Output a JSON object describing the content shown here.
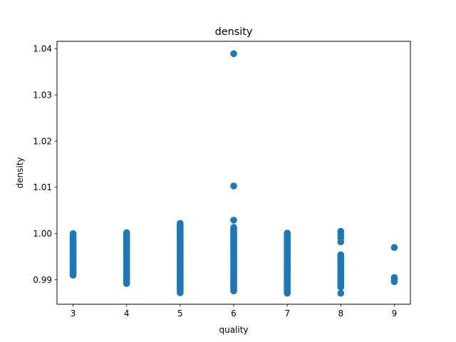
{
  "chart_data": {
    "type": "scatter",
    "title": "density",
    "xlabel": "quality",
    "ylabel": "density",
    "grid": false,
    "legend": "none",
    "color": "#1f77b4",
    "xlim": [
      2.7,
      9.3
    ],
    "ylim": [
      0.98472,
      1.04158
    ],
    "xticks": [
      3,
      4,
      5,
      6,
      7,
      8,
      9
    ],
    "yticks": [
      0.99,
      1.0,
      1.01,
      1.02,
      1.03,
      1.04
    ],
    "ytick_labels": [
      "0.99",
      "1.00",
      "1.01",
      "1.02",
      "1.03",
      "1.04"
    ],
    "ranges": [
      {
        "x": 3,
        "min": 0.991,
        "max": 1.0
      },
      {
        "x": 4,
        "min": 0.9892,
        "max": 1.0004
      },
      {
        "x": 5,
        "min": 0.9872,
        "max": 1.0023
      },
      {
        "x": 6,
        "min": 0.9876,
        "max": 1.0014
      },
      {
        "x": 7,
        "min": 0.9871,
        "max": 1.0003
      },
      {
        "x": 8,
        "min": 0.9884,
        "max": 0.9956
      }
    ],
    "extra_points": [
      {
        "x": 6,
        "y": 1.0389
      },
      {
        "x": 6,
        "y": 1.0103
      },
      {
        "x": 6,
        "y": 1.0029
      },
      {
        "x": 8,
        "y": 1.0005
      },
      {
        "x": 8,
        "y": 0.9998
      },
      {
        "x": 8,
        "y": 0.9991
      },
      {
        "x": 8,
        "y": 0.9982
      },
      {
        "x": 8,
        "y": 0.9871
      },
      {
        "x": 9,
        "y": 0.997
      },
      {
        "x": 9,
        "y": 0.9905
      },
      {
        "x": 9,
        "y": 0.99
      },
      {
        "x": 9,
        "y": 0.9896
      }
    ]
  }
}
